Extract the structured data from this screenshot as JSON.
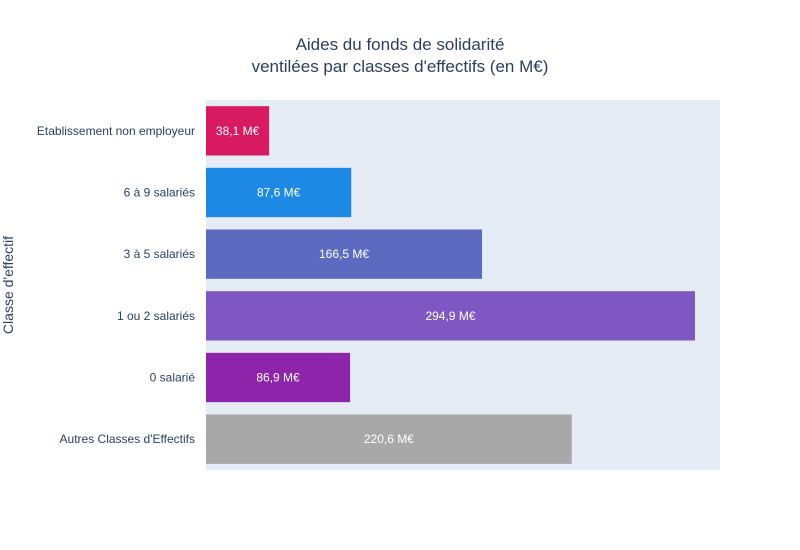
{
  "chart_data": {
    "type": "bar",
    "orientation": "horizontal",
    "title_lines": [
      "Aides du fonds de solidarité",
      "ventilées par classes d'effectifs (en M€)"
    ],
    "ylabel": "Classe d'effectif",
    "xlabel": "",
    "xlim": [
      0,
      310
    ],
    "x_ticks_shown": false,
    "grid": false,
    "plot_background": "#e5ecf6",
    "categories": [
      "Etablissement non employeur",
      "6 à 9 salariés",
      "3 à 5 salariés",
      "1 ou 2 salariés",
      "0 salarié",
      "Autres Classes d'Effectifs"
    ],
    "values": [
      38.1,
      87.6,
      166.5,
      294.9,
      86.9,
      220.6
    ],
    "value_labels": [
      "38,1 M€",
      "87,6 M€",
      "166,5 M€",
      "294,9 M€",
      "86,9 M€",
      "220,6 M€"
    ],
    "colors": [
      "#d81b60",
      "#1e88e5",
      "#5c6bc0",
      "#7e57c2",
      "#8e24aa",
      "#a8a8a8"
    ]
  }
}
